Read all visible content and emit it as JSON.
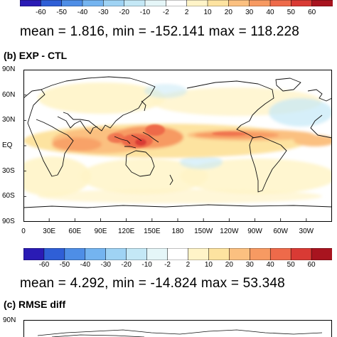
{
  "colorbar": {
    "ticks": [
      "-60",
      "-50",
      "-40",
      "-30",
      "-20",
      "-10",
      "-2",
      "2",
      "10",
      "20",
      "30",
      "40",
      "50",
      "60"
    ],
    "colors": [
      "#2a1bb5",
      "#2f5fd6",
      "#4e8ee6",
      "#74b4f0",
      "#9fd3f4",
      "#c4e8f6",
      "#e5f6f8",
      "#ffffff",
      "#fff4c8",
      "#fde3a0",
      "#fbc080",
      "#f79a62",
      "#ee6a4a",
      "#d93a34",
      "#a8141f"
    ]
  },
  "panel_a": {
    "stats": "mean =   1.816,  min = -152.141  max = 118.228"
  },
  "panel_b": {
    "title": "(b) EXP - CTL",
    "lat_labels": [
      "90N",
      "60N",
      "30N",
      "EQ",
      "30S",
      "60S",
      "90S"
    ],
    "lon_labels": [
      "0",
      "30E",
      "60E",
      "90E",
      "120E",
      "150E",
      "180",
      "150W",
      "120W",
      "90W",
      "60W",
      "30W"
    ],
    "stats": "mean =   4.292,  min = -14.824  max = 53.348"
  },
  "panel_c": {
    "title": "(c) RMSE diff",
    "lat_labels": [
      "90N"
    ]
  }
}
